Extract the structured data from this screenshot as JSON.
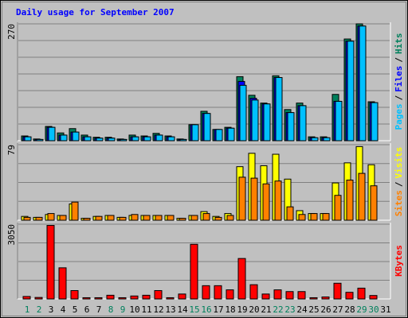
{
  "chart_data": [
    {
      "type": "bar",
      "title": "Daily usage for September 2007",
      "label_separator": "/",
      "ylim": [
        0,
        270
      ],
      "yticks": [
        270
      ],
      "series": [
        {
          "name": "Hits",
          "color": "#00805c",
          "values": [
            11,
            4,
            33,
            18,
            28,
            13,
            8,
            8,
            4,
            13,
            11,
            17,
            11,
            4,
            37,
            68,
            26,
            31,
            148,
            105,
            87,
            150,
            72,
            87,
            9,
            9,
            107,
            235,
            270,
            90,
            null
          ]
        },
        {
          "name": "Files",
          "color": "#0000ff",
          "values": [
            9,
            3,
            31,
            13,
            20,
            9,
            6,
            6,
            3,
            9,
            9,
            13,
            9,
            3,
            37,
            63,
            26,
            29,
            137,
            98,
            85,
            146,
            65,
            81,
            7,
            7,
            91,
            230,
            265,
            88,
            null
          ]
        },
        {
          "name": "Pages",
          "color": "#00c0ff",
          "values": [
            9,
            3,
            31,
            13,
            20,
            9,
            6,
            6,
            3,
            9,
            9,
            13,
            9,
            3,
            37,
            63,
            26,
            29,
            128,
            94,
            85,
            146,
            65,
            81,
            7,
            7,
            91,
            230,
            265,
            88,
            null
          ]
        }
      ]
    },
    {
      "type": "bar",
      "label_separator": "/",
      "ylim": [
        0,
        79
      ],
      "yticks": [
        79
      ],
      "series": [
        {
          "name": "Visits",
          "color": "#ffff00",
          "values": [
            4,
            3,
            6,
            5,
            17,
            2,
            4,
            5,
            3,
            5,
            5,
            5,
            5,
            2,
            5,
            9,
            4,
            7,
            56,
            70,
            57,
            69,
            43,
            10,
            7,
            7,
            39,
            60,
            77,
            58,
            null
          ]
        },
        {
          "name": "Sites",
          "color": "#ff8000",
          "values": [
            3,
            3,
            7,
            5,
            19,
            2,
            4,
            5,
            3,
            6,
            5,
            5,
            5,
            2,
            5,
            7,
            3,
            5,
            45,
            44,
            38,
            41,
            14,
            6,
            7,
            7,
            26,
            42,
            49,
            36,
            null
          ]
        }
      ]
    },
    {
      "type": "bar",
      "ylim": [
        0,
        3050
      ],
      "yticks": [
        3050
      ],
      "categories": [
        "1",
        "2",
        "3",
        "4",
        "5",
        "6",
        "7",
        "8",
        "9",
        "10",
        "11",
        "12",
        "13",
        "14",
        "15",
        "16",
        "17",
        "18",
        "19",
        "20",
        "21",
        "22",
        "23",
        "24",
        "25",
        "26",
        "27",
        "28",
        "29",
        "30",
        "31"
      ],
      "category_colors": [
        "#00805c",
        "#00805c",
        "#000000",
        "#000000",
        "#000000",
        "#000000",
        "#000000",
        "#00805c",
        "#00805c",
        "#000000",
        "#000000",
        "#000000",
        "#000000",
        "#000000",
        "#00805c",
        "#00805c",
        "#000000",
        "#000000",
        "#000000",
        "#000000",
        "#000000",
        "#00805c",
        "#00805c",
        "#000000",
        "#000000",
        "#000000",
        "#000000",
        "#000000",
        "#00805c",
        "#00805c",
        "#000000"
      ],
      "series": [
        {
          "name": "KBytes",
          "color": "#ff0000",
          "values": [
            100,
            60,
            3000,
            1270,
            340,
            50,
            50,
            150,
            50,
            120,
            150,
            340,
            50,
            200,
            2230,
            540,
            540,
            370,
            1650,
            580,
            200,
            370,
            300,
            300,
            50,
            80,
            640,
            270,
            440,
            140,
            null
          ]
        }
      ]
    }
  ]
}
